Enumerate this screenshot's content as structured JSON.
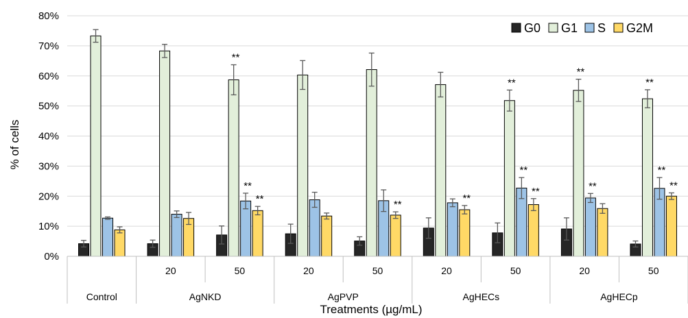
{
  "chart_data": {
    "type": "bar",
    "xlabel": "Treatments (µg/mL)",
    "ylabel": "% of cells",
    "ylim": [
      0,
      80
    ],
    "y_ticks": [
      "0%",
      "10%",
      "20%",
      "30%",
      "40%",
      "50%",
      "60%",
      "70%",
      "80%"
    ],
    "grid": true,
    "legend_position": "top-right",
    "categories": [
      {
        "group": "Control",
        "dose": ""
      },
      {
        "group": "AgNKD",
        "dose": "20"
      },
      {
        "group": "AgNKD",
        "dose": "50"
      },
      {
        "group": "AgPVP",
        "dose": "20"
      },
      {
        "group": "AgPVP",
        "dose": "50"
      },
      {
        "group": "AgHECs",
        "dose": "20"
      },
      {
        "group": "AgHECs",
        "dose": "50"
      },
      {
        "group": "AgHECp",
        "dose": "20"
      },
      {
        "group": "AgHECp",
        "dose": "50"
      }
    ],
    "groups": [
      "Control",
      "AgNKD",
      "AgPVP",
      "AgHECs",
      "AgHECp"
    ],
    "series": [
      {
        "name": "G0",
        "color": "#262626",
        "values": [
          4.2,
          4.2,
          7.1,
          7.5,
          5.1,
          9.4,
          7.8,
          9.1,
          4.1
        ],
        "errors": [
          1.1,
          1.2,
          3.0,
          3.2,
          1.4,
          3.4,
          3.3,
          3.7,
          1.0
        ],
        "significance": [
          "",
          "",
          "",
          "",
          "",
          "",
          "",
          "",
          ""
        ]
      },
      {
        "name": "G1",
        "color": "#e2efda",
        "values": [
          73.3,
          68.3,
          58.7,
          60.3,
          62.1,
          57.1,
          51.8,
          55.2,
          52.4
        ],
        "errors": [
          2.1,
          2.2,
          5.0,
          4.8,
          5.5,
          4.1,
          3.5,
          3.7,
          3.0
        ],
        "significance": [
          "",
          "",
          "**",
          "",
          "",
          "",
          "**",
          "**",
          "**"
        ]
      },
      {
        "name": "S",
        "color": "#9dc3e6",
        "values": [
          12.7,
          14.0,
          18.4,
          18.8,
          18.5,
          17.8,
          22.7,
          19.4,
          22.6
        ],
        "errors": [
          0.4,
          1.1,
          2.6,
          2.5,
          3.6,
          1.3,
          3.5,
          1.5,
          3.6
        ],
        "significance": [
          "",
          "",
          "**",
          "",
          "",
          "",
          "**",
          "**",
          "**"
        ]
      },
      {
        "name": "G2M",
        "color": "#ffd966",
        "values": [
          8.8,
          12.6,
          15.2,
          13.4,
          13.7,
          15.5,
          17.2,
          15.9,
          20.0
        ],
        "errors": [
          1.0,
          2.0,
          1.4,
          1.0,
          1.1,
          1.4,
          2.0,
          1.6,
          1.1
        ],
        "significance": [
          "",
          "",
          "**",
          "",
          "**",
          "**",
          "**",
          "",
          "**"
        ]
      }
    ]
  }
}
